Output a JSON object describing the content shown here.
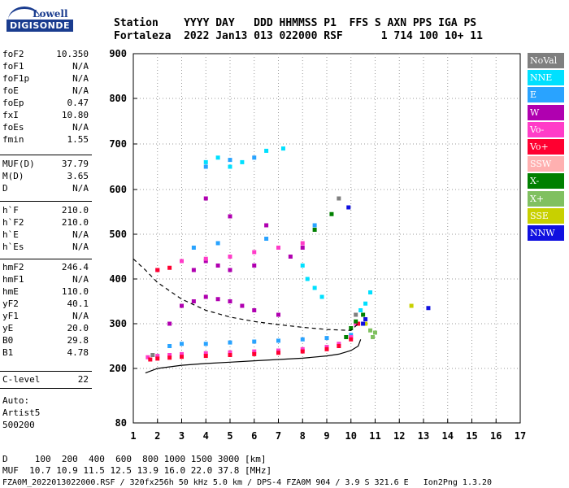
{
  "logo": {
    "line1": "Lowell",
    "line2": "DIGISONDE"
  },
  "header": {
    "row1": "Station    YYYY DAY   DDD HHMMSS P1  FFS S AXN PPS IGA PS",
    "row2": "Fortaleza  2022 Jan13 013 022000 RSF      1 714 100 10+ 11"
  },
  "params": [
    {
      "name": "foF2",
      "value": "10.350"
    },
    {
      "name": "foF1",
      "value": "N/A"
    },
    {
      "name": "foF1p",
      "value": "N/A"
    },
    {
      "name": "foE",
      "value": "N/A"
    },
    {
      "name": "foEp",
      "value": "0.47"
    },
    {
      "name": "fxI",
      "value": "10.80"
    },
    {
      "name": "foEs",
      "value": "N/A"
    },
    {
      "name": "fmin",
      "value": "1.55"
    },
    {
      "name": "MUF(D)",
      "value": "37.79"
    },
    {
      "name": "M(D)",
      "value": "3.65"
    },
    {
      "name": "D",
      "value": "N/A"
    },
    {
      "name": "h`F",
      "value": "210.0"
    },
    {
      "name": "h`F2",
      "value": "210.0"
    },
    {
      "name": "h`E",
      "value": "N/A"
    },
    {
      "name": "h`Es",
      "value": "N/A"
    },
    {
      "name": "hmF2",
      "value": "246.4"
    },
    {
      "name": "hmF1",
      "value": "N/A"
    },
    {
      "name": "hmE",
      "value": "110.0"
    },
    {
      "name": "yF2",
      "value": "40.1"
    },
    {
      "name": "yF1",
      "value": "N/A"
    },
    {
      "name": "yE",
      "value": "20.0"
    },
    {
      "name": "B0",
      "value": "29.8"
    },
    {
      "name": "B1",
      "value": "4.78"
    },
    {
      "name": "C-level",
      "value": "22"
    }
  ],
  "auto": {
    "line1": "Auto:",
    "line2": "Artist5",
    "line3": "500200"
  },
  "legend": [
    {
      "label": "NoVal",
      "color": "#7f7f7f"
    },
    {
      "label": "NNE",
      "color": "#00e0ff"
    },
    {
      "label": "E",
      "color": "#29a3ff"
    },
    {
      "label": "W",
      "color": "#b000b0"
    },
    {
      "label": "Vo-",
      "color": "#ff3cc8"
    },
    {
      "label": "Vo+",
      "color": "#ff0030"
    },
    {
      "label": "SSW",
      "color": "#ffb0b0"
    },
    {
      "label": "X-",
      "color": "#008000"
    },
    {
      "label": "X+",
      "color": "#80c060"
    },
    {
      "label": "SSE",
      "color": "#c8d000"
    },
    {
      "label": "NNW",
      "color": "#1010e0"
    }
  ],
  "footer": {
    "line1": "D     100  200  400  600  800 1000 1500 3000 [km]",
    "line2": "MUF  10.7 10.9 11.5 12.5 13.9 16.0 22.0 37.8 [MHz]",
    "line3": "FZA0M_2022013022000.RSF / 320fx256h 50 kHz 5.0 km / DPS-4 FZA0M 904 / 3.9 S 321.6 E   Ion2Png 1.3.20"
  },
  "chart_data": {
    "type": "scatter",
    "xlim": [
      1,
      17
    ],
    "ylim": [
      80,
      900
    ],
    "x_ticks": [
      "1",
      "2",
      "3",
      "4",
      "5",
      "6",
      "7",
      "8",
      "9",
      "10",
      "11",
      "12",
      "13",
      "14",
      "15",
      "16",
      "17"
    ],
    "y_ticks": [
      "80",
      "200",
      "300",
      "400",
      "500",
      "600",
      "700",
      "800",
      "900"
    ],
    "grid": "dotted",
    "legend_position": "right",
    "series": [
      {
        "name": "NNE",
        "color": "#00e0ff",
        "points": [
          [
            10.4,
            330
          ],
          [
            10.6,
            345
          ],
          [
            10.8,
            370
          ],
          [
            8.2,
            400
          ],
          [
            8.5,
            380
          ],
          [
            8.8,
            360
          ],
          [
            8.0,
            430
          ],
          [
            4.0,
            660
          ],
          [
            4.5,
            670
          ],
          [
            5.0,
            650
          ],
          [
            5.5,
            660
          ],
          [
            7.2,
            690
          ],
          [
            6.5,
            685
          ]
        ]
      },
      {
        "name": "E",
        "color": "#29a3ff",
        "points": [
          [
            2.5,
            250
          ],
          [
            3.0,
            255
          ],
          [
            4.0,
            255
          ],
          [
            5.0,
            258
          ],
          [
            6.0,
            260
          ],
          [
            7.0,
            262
          ],
          [
            8.0,
            265
          ],
          [
            9.0,
            268
          ],
          [
            10.0,
            275
          ],
          [
            10.5,
            300
          ],
          [
            4.0,
            650
          ],
          [
            5.0,
            665
          ],
          [
            6.0,
            670
          ],
          [
            3.5,
            470
          ],
          [
            4.5,
            480
          ],
          [
            6.5,
            490
          ],
          [
            8.5,
            520
          ]
        ]
      },
      {
        "name": "W",
        "color": "#b000b0",
        "points": [
          [
            3.0,
            340
          ],
          [
            3.5,
            350
          ],
          [
            4.0,
            360
          ],
          [
            4.5,
            355
          ],
          [
            5.0,
            350
          ],
          [
            5.5,
            340
          ],
          [
            6.0,
            330
          ],
          [
            7.0,
            320
          ],
          [
            3.5,
            420
          ],
          [
            4.0,
            440
          ],
          [
            4.5,
            430
          ],
          [
            5.0,
            420
          ],
          [
            6.0,
            430
          ],
          [
            7.5,
            450
          ],
          [
            2.0,
            420
          ],
          [
            8.0,
            470
          ],
          [
            2.5,
            300
          ],
          [
            4.0,
            580
          ],
          [
            5.0,
            540
          ],
          [
            6.5,
            520
          ]
        ]
      },
      {
        "name": "Vo-",
        "color": "#ff3cc8",
        "points": [
          [
            1.6,
            225
          ],
          [
            2.0,
            228
          ],
          [
            2.5,
            230
          ],
          [
            3.0,
            232
          ],
          [
            4.0,
            234
          ],
          [
            5.0,
            236
          ],
          [
            6.0,
            238
          ],
          [
            7.0,
            240
          ],
          [
            8.0,
            243
          ],
          [
            9.0,
            248
          ],
          [
            9.5,
            255
          ],
          [
            10.0,
            270
          ],
          [
            10.2,
            300
          ],
          [
            3.0,
            440
          ],
          [
            4.0,
            445
          ],
          [
            5.0,
            450
          ],
          [
            6.0,
            460
          ],
          [
            7.0,
            470
          ],
          [
            8.0,
            480
          ]
        ]
      },
      {
        "name": "Vo+",
        "color": "#ff0030",
        "points": [
          [
            1.7,
            220
          ],
          [
            2.0,
            222
          ],
          [
            2.5,
            224
          ],
          [
            3.0,
            226
          ],
          [
            4.0,
            228
          ],
          [
            5.0,
            230
          ],
          [
            6.0,
            232
          ],
          [
            7.0,
            235
          ],
          [
            8.0,
            238
          ],
          [
            9.0,
            243
          ],
          [
            9.5,
            250
          ],
          [
            10.0,
            265
          ],
          [
            10.3,
            300
          ],
          [
            2.0,
            420
          ],
          [
            2.5,
            425
          ]
        ]
      },
      {
        "name": "X-",
        "color": "#008000",
        "points": [
          [
            9.8,
            270
          ],
          [
            10.0,
            290
          ],
          [
            10.2,
            305
          ],
          [
            10.5,
            320
          ],
          [
            8.5,
            510
          ],
          [
            9.2,
            545
          ]
        ]
      },
      {
        "name": "X+",
        "color": "#80c060",
        "points": [
          [
            10.8,
            285
          ],
          [
            11.0,
            280
          ],
          [
            10.9,
            270
          ]
        ]
      },
      {
        "name": "SSE",
        "color": "#c8d000",
        "points": [
          [
            10.6,
            300
          ],
          [
            12.5,
            340
          ]
        ]
      },
      {
        "name": "NNW",
        "color": "#1010e0",
        "points": [
          [
            10.5,
            300
          ],
          [
            10.6,
            310
          ],
          [
            13.2,
            335
          ],
          [
            9.9,
            560
          ]
        ]
      },
      {
        "name": "NoVal",
        "color": "#7f7f7f",
        "points": [
          [
            1.8,
            230
          ],
          [
            9.5,
            580
          ],
          [
            10.2,
            320
          ]
        ]
      }
    ],
    "curves": [
      {
        "label": "profile",
        "style": "solid",
        "points": [
          [
            1.5,
            190
          ],
          [
            2.0,
            200
          ],
          [
            3.0,
            207
          ],
          [
            4.0,
            211
          ],
          [
            5.0,
            214
          ],
          [
            6.0,
            217
          ],
          [
            7.0,
            220
          ],
          [
            8.0,
            223
          ],
          [
            9.0,
            228
          ],
          [
            9.5,
            232
          ],
          [
            10.0,
            240
          ],
          [
            10.3,
            250
          ],
          [
            10.4,
            265
          ]
        ]
      },
      {
        "label": "MUF",
        "style": "dashed",
        "points": [
          [
            1.0,
            445
          ],
          [
            1.5,
            420
          ],
          [
            2.0,
            392
          ],
          [
            3.0,
            355
          ],
          [
            4.0,
            330
          ],
          [
            5.0,
            315
          ],
          [
            6.0,
            305
          ],
          [
            7.0,
            298
          ],
          [
            8.0,
            292
          ],
          [
            9.0,
            287
          ],
          [
            10.0,
            285
          ],
          [
            10.3,
            300
          ]
        ]
      }
    ]
  }
}
